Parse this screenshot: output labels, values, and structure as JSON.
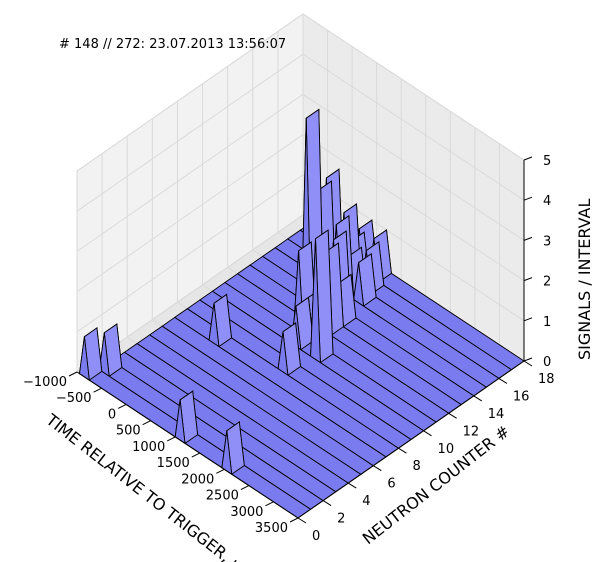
{
  "chart_data": {
    "type": "area",
    "title": "# 148 // 272: 23.07.2013 13:56:07",
    "xlabel": "TIME RELATIVE TO TRIGGER, μs",
    "ylabel": "NEUTRON COUNTER #",
    "zlabel": "SIGNALS / INTERVAL",
    "xlim": [
      -1000,
      3500
    ],
    "ylim": [
      0,
      18
    ],
    "zlim": [
      0,
      5
    ],
    "x_ticks": [
      "−1000",
      "−500",
      "0",
      "500",
      "1000",
      "1500",
      "2000",
      "2500",
      "3000",
      "3500"
    ],
    "y_ticks": [
      "0",
      "2",
      "4",
      "6",
      "8",
      "10",
      "12",
      "14",
      "16",
      "18"
    ],
    "z_ticks": [
      "0",
      "1",
      "2",
      "3",
      "4",
      "5"
    ],
    "grid": true,
    "fill_color": "#7b7bf0",
    "edge_color": "#000000",
    "interval_us": 100,
    "counters": [
      {
        "counter": 0,
        "peaks": [
          {
            "x": -850,
            "z": 1
          },
          {
            "x": 1100,
            "z": 1
          },
          {
            "x": 2050,
            "z": 1
          }
        ]
      },
      {
        "counter": 1,
        "peaks": [
          {
            "x": -700,
            "z": 1
          }
        ]
      },
      {
        "counter": 2,
        "peaks": []
      },
      {
        "counter": 3,
        "peaks": []
      },
      {
        "counter": 4,
        "peaks": []
      },
      {
        "counter": 5,
        "peaks": []
      },
      {
        "counter": 6,
        "peaks": []
      },
      {
        "counter": 7,
        "peaks": [
          {
            "x": 0,
            "z": 1
          }
        ]
      },
      {
        "counter": 8,
        "peaks": [
          {
            "x": 1150,
            "z": 1
          }
        ]
      },
      {
        "counter": 9,
        "peaks": []
      },
      {
        "counter": 10,
        "peaks": [
          {
            "x": 900,
            "z": 1
          },
          {
            "x": 1300,
            "z": 3
          }
        ]
      },
      {
        "counter": 11,
        "peaks": [
          {
            "x": 700,
            "z": 2
          },
          {
            "x": 900,
            "z": 1
          }
        ]
      },
      {
        "counter": 12,
        "peaks": [
          {
            "x": 600,
            "z": 5
          },
          {
            "x": 1000,
            "z": 2
          }
        ]
      },
      {
        "counter": 13,
        "peaks": [
          {
            "x": 600,
            "z": 3
          },
          {
            "x": 900,
            "z": 2
          },
          {
            "x": 1000,
            "z": 1
          }
        ]
      },
      {
        "counter": 14,
        "peaks": [
          {
            "x": 500,
            "z": 3
          },
          {
            "x": 700,
            "z": 2
          }
        ]
      },
      {
        "counter": 15,
        "peaks": [
          {
            "x": 200,
            "z": 1
          },
          {
            "x": 600,
            "z": 2
          },
          {
            "x": 700,
            "z": 1
          },
          {
            "x": 900,
            "z": 1
          }
        ]
      },
      {
        "counter": 16,
        "peaks": [
          {
            "x": 300,
            "z": 1
          },
          {
            "x": 500,
            "z": 1
          },
          {
            "x": 800,
            "z": 1
          }
        ]
      },
      {
        "counter": 17,
        "peaks": [
          {
            "x": 400,
            "z": 1
          },
          {
            "x": 700,
            "z": 1
          }
        ]
      }
    ]
  }
}
